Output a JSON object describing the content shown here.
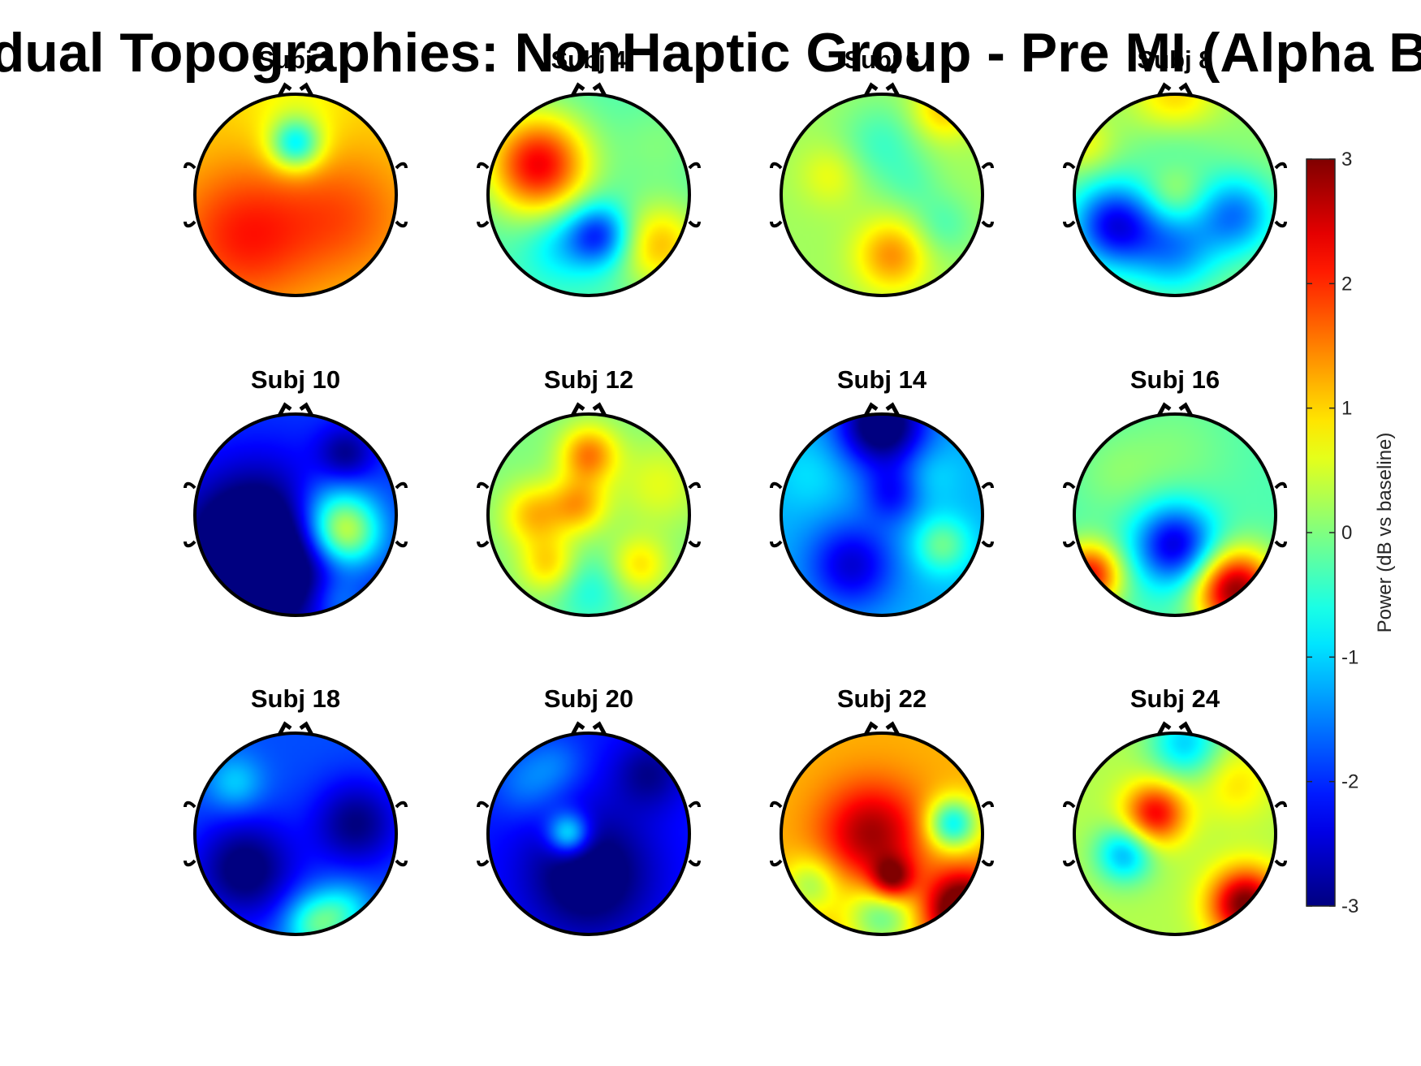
{
  "chart_data": {
    "type": "heatmap",
    "title": "Individual Topographies: NonHaptic Group - Pre MI (Alpha Band)",
    "colormap": "jet",
    "clim": [
      -3,
      3
    ],
    "colorbar": {
      "label": "Power (dB vs baseline)",
      "ticks": [
        3,
        2,
        1,
        0,
        -1,
        -2,
        -3
      ],
      "tick_labels": [
        "3",
        "2",
        "1",
        "0",
        "-1",
        "-2",
        "-3"
      ],
      "placement": "right"
    },
    "layout": {
      "rows": 3,
      "cols": 4
    },
    "subjects": [
      {
        "label": "Subj 2",
        "base": 1.0,
        "blobs": [
          [
            0.0,
            0.5,
            -1.8,
            0.18
          ],
          [
            -0.5,
            -0.4,
            1.1,
            0.5
          ],
          [
            0.5,
            -0.2,
            0.7,
            0.45
          ],
          [
            0.0,
            0.85,
            -0.3,
            0.35
          ]
        ]
      },
      {
        "label": "Subj 4",
        "base": -0.3,
        "blobs": [
          [
            -0.5,
            0.3,
            2.6,
            0.35
          ],
          [
            0.1,
            -0.4,
            -1.8,
            0.22
          ],
          [
            0.7,
            -0.5,
            1.4,
            0.3
          ],
          [
            0.7,
            0.5,
            0.3,
            0.3
          ],
          [
            -0.3,
            -0.5,
            -0.6,
            0.25
          ]
        ]
      },
      {
        "label": "Subj 6",
        "base": 0.2,
        "blobs": [
          [
            0.1,
            -0.6,
            1.2,
            0.25
          ],
          [
            -0.5,
            0.2,
            0.5,
            0.22
          ],
          [
            0.6,
            -0.3,
            -0.5,
            0.22
          ],
          [
            0.6,
            0.85,
            0.9,
            0.22
          ],
          [
            0.0,
            0.5,
            -0.6,
            0.3
          ],
          [
            0.3,
            0.1,
            -0.3,
            0.2
          ]
        ]
      },
      {
        "label": "Subj 8",
        "base": 0.1,
        "blobs": [
          [
            -0.6,
            -0.3,
            -2.4,
            0.3
          ],
          [
            0.0,
            -0.55,
            -1.4,
            0.3
          ],
          [
            0.6,
            -0.2,
            -1.6,
            0.28
          ],
          [
            0.0,
            0.9,
            1.2,
            0.3
          ],
          [
            -0.9,
            0.5,
            0.6,
            0.2
          ],
          [
            0.0,
            0.6,
            -0.7,
            0.3
          ],
          [
            0.0,
            0.0,
            0.5,
            0.2
          ]
        ]
      },
      {
        "label": "Subj 10",
        "base": -1.9,
        "blobs": [
          [
            -0.35,
            -0.4,
            -2.5,
            0.55
          ],
          [
            0.5,
            -0.2,
            2.0,
            0.25
          ],
          [
            0.35,
            0.0,
            1.2,
            0.3
          ],
          [
            0.5,
            0.6,
            -1.0,
            0.2
          ],
          [
            0.4,
            -0.85,
            0.8,
            0.2
          ]
        ]
      },
      {
        "label": "Subj 12",
        "base": 0.0,
        "blobs": [
          [
            -0.1,
            0.1,
            1.2,
            0.2
          ],
          [
            0.0,
            0.6,
            1.5,
            0.2
          ],
          [
            -0.55,
            0.0,
            1.1,
            0.22
          ],
          [
            -0.4,
            -0.5,
            1.0,
            0.2
          ],
          [
            0.5,
            -0.5,
            0.9,
            0.2
          ],
          [
            0.7,
            0.3,
            0.6,
            0.3
          ],
          [
            0.0,
            -0.75,
            -0.6,
            0.25
          ]
        ]
      },
      {
        "label": "Subj 14",
        "base": -1.2,
        "blobs": [
          [
            0.0,
            0.9,
            -2.3,
            0.3
          ],
          [
            -0.3,
            -0.5,
            -1.3,
            0.3
          ],
          [
            0.1,
            0.2,
            -0.9,
            0.2
          ],
          [
            0.6,
            -0.3,
            1.1,
            0.2
          ],
          [
            -0.7,
            0.4,
            0.3,
            0.25
          ],
          [
            0.5,
            0.4,
            0.3,
            0.2
          ]
        ]
      },
      {
        "label": "Subj 16",
        "base": -0.3,
        "blobs": [
          [
            0.0,
            -0.3,
            -2.2,
            0.28
          ],
          [
            -0.85,
            -0.6,
            2.5,
            0.22
          ],
          [
            0.6,
            -0.75,
            3.2,
            0.28
          ],
          [
            0.0,
            0.6,
            0.3,
            0.4
          ],
          [
            -0.6,
            0.4,
            0.3,
            0.3
          ]
        ]
      },
      {
        "label": "Subj 18",
        "base": -1.8,
        "blobs": [
          [
            -0.5,
            -0.35,
            -1.4,
            0.35
          ],
          [
            0.6,
            0.1,
            -1.2,
            0.3
          ],
          [
            0.2,
            -0.9,
            1.5,
            0.22
          ],
          [
            -0.6,
            0.5,
            0.8,
            0.2
          ],
          [
            0.5,
            -0.75,
            0.8,
            0.2
          ]
        ]
      },
      {
        "label": "Subj 20",
        "base": -2.1,
        "blobs": [
          [
            0.0,
            -0.4,
            -1.3,
            0.45
          ],
          [
            -0.2,
            0.0,
            1.8,
            0.15
          ],
          [
            -0.6,
            0.5,
            0.6,
            0.25
          ],
          [
            0.6,
            0.6,
            -0.8,
            0.25
          ],
          [
            -0.3,
            0.7,
            0.4,
            0.2
          ]
        ]
      },
      {
        "label": "Subj 22",
        "base": 1.2,
        "blobs": [
          [
            -0.1,
            0.0,
            1.6,
            0.35
          ],
          [
            0.1,
            -0.45,
            1.8,
            0.15
          ],
          [
            0.8,
            -0.75,
            2.6,
            0.25
          ],
          [
            0.7,
            0.1,
            -2.0,
            0.18
          ],
          [
            0.0,
            -0.8,
            -1.4,
            0.25
          ],
          [
            -0.7,
            -0.5,
            -1.0,
            0.2
          ]
        ]
      },
      {
        "label": "Subj 24",
        "base": 0.3,
        "blobs": [
          [
            -0.2,
            0.2,
            2.0,
            0.22
          ],
          [
            -0.5,
            -0.2,
            -1.5,
            0.2
          ],
          [
            0.7,
            -0.7,
            2.8,
            0.25
          ],
          [
            0.1,
            0.9,
            -1.3,
            0.25
          ],
          [
            0.6,
            0.5,
            0.6,
            0.25
          ]
        ]
      }
    ]
  }
}
